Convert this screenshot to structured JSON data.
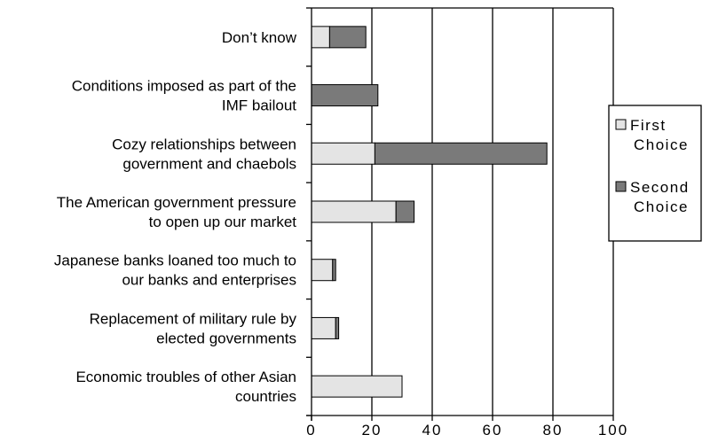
{
  "chart_data": {
    "type": "bar",
    "orientation": "horizontal",
    "stacked": true,
    "categories": [
      "Don’t know",
      "Conditions imposed as part of the IMF bailout",
      "Cozy relationships between government and chaebols",
      "The American government pressure to open up our market",
      "Japanese banks loaned too much to our banks and enterprises",
      "Replacement of military rule by elected governments",
      "Economic troubles of other Asian countries"
    ],
    "category_lines": [
      [
        "Don’t know"
      ],
      [
        "Conditions imposed as part of the",
        "IMF bailout"
      ],
      [
        "Cozy relationships between",
        "government and chaebols"
      ],
      [
        "The American government pressure",
        "to open up our market"
      ],
      [
        "Japanese banks loaned too much to",
        "our banks and enterprises"
      ],
      [
        "Replacement of military rule by",
        "elected governments"
      ],
      [
        "Economic troubles of other Asian",
        "countries"
      ]
    ],
    "series": [
      {
        "name": "First Choice",
        "legend_lines": [
          "First",
          "Choice"
        ],
        "color": "#e4e4e4",
        "values": [
          6,
          0,
          21,
          28,
          7,
          8,
          30
        ]
      },
      {
        "name": "Second Choice",
        "legend_lines": [
          "Second",
          "Choice"
        ],
        "color": "#7a7a7a",
        "values": [
          12,
          22,
          57,
          6,
          1,
          1,
          0
        ]
      }
    ],
    "xlim": [
      0,
      100
    ],
    "xticks": [
      0,
      20,
      40,
      60,
      80,
      100
    ],
    "grid": "vertical",
    "legend": "right",
    "title": "",
    "xlabel": "",
    "ylabel": ""
  }
}
